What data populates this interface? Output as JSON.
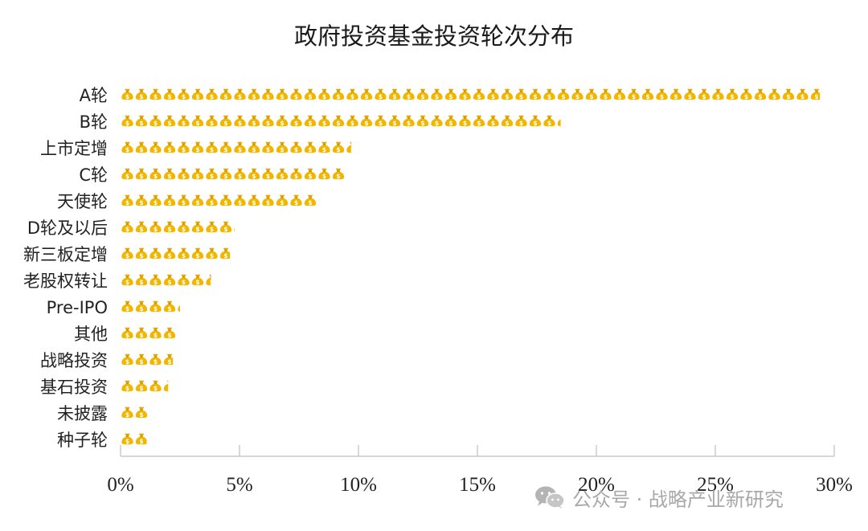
{
  "chart_data": {
    "type": "bar",
    "orientation": "horizontal",
    "title": "政府投资基金投资轮次分布",
    "categories": [
      "A轮",
      "B轮",
      "上市定增",
      "C轮",
      "天使轮",
      "D轮及以后",
      "新三板定增",
      "老股权转让",
      "Pre-IPO",
      "其他",
      "战略投资",
      "基石投资",
      "未披露",
      "种子轮"
    ],
    "values": [
      29.4,
      18.5,
      9.7,
      9.5,
      8.3,
      4.8,
      4.6,
      3.8,
      2.5,
      2.4,
      2.2,
      2.0,
      1.2,
      1.1
    ],
    "x_ticks": [
      "0%",
      "5%",
      "10%",
      "15%",
      "20%",
      "25%",
      "30%"
    ],
    "xlim": [
      0,
      30
    ],
    "unit": "%",
    "mark": "money-bag-pictogram",
    "colors": {
      "bag": "#f0b400",
      "bag_dark": "#c98c00",
      "axis": "#bfbfbf"
    }
  },
  "watermark": {
    "icon": "wechat-icon",
    "text": "公众号 · 战略产业新研究"
  }
}
